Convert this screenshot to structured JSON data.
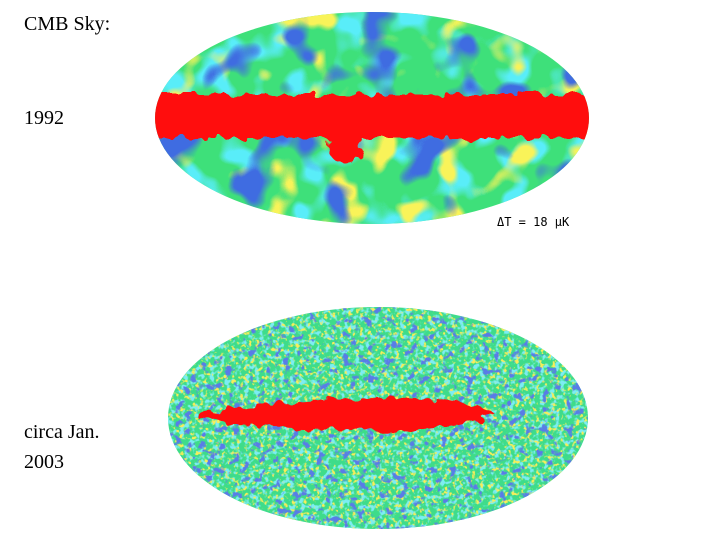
{
  "slide": {
    "title": "CMB Sky:",
    "maps": [
      {
        "label_lines": [
          "1992"
        ],
        "scale_note": "ΔT = 18 μK"
      },
      {
        "label_lines": [
          "circa Jan.",
          "2003"
        ]
      }
    ]
  }
}
